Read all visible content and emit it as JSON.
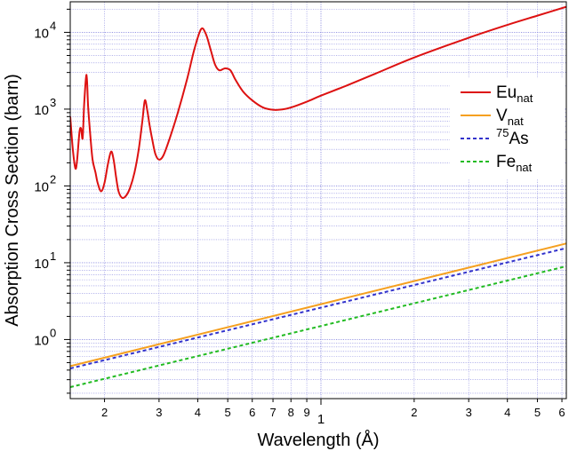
{
  "chart_data": {
    "type": "line",
    "title": "",
    "xlabel": "Wavelength (Å)",
    "ylabel": "Absorption Cross Section (barn)",
    "x_scale": "log",
    "y_scale": "log",
    "xlim": [
      0.155,
      6.2
    ],
    "ylim": [
      0.17,
      25000
    ],
    "grid": true,
    "legend_position": "right",
    "x_tick_labels": [
      {
        "value": 0.2,
        "label": "2"
      },
      {
        "value": 0.3,
        "label": "3"
      },
      {
        "value": 0.4,
        "label": "4"
      },
      {
        "value": 0.5,
        "label": "5"
      },
      {
        "value": 0.6,
        "label": "6"
      },
      {
        "value": 0.7,
        "label": "7"
      },
      {
        "value": 0.8,
        "label": "8"
      },
      {
        "value": 0.9,
        "label": "9"
      },
      {
        "value": 1,
        "label": "1"
      },
      {
        "value": 2,
        "label": "2"
      },
      {
        "value": 3,
        "label": "3"
      },
      {
        "value": 4,
        "label": "4"
      },
      {
        "value": 5,
        "label": "5"
      },
      {
        "value": 6,
        "label": "6"
      }
    ],
    "y_tick_labels": [
      {
        "value": 1,
        "base": "10",
        "exp": "0"
      },
      {
        "value": 10,
        "base": "10",
        "exp": "1"
      },
      {
        "value": 100,
        "base": "10",
        "exp": "2"
      },
      {
        "value": 1000,
        "base": "10",
        "exp": "3"
      },
      {
        "value": 10000,
        "base": "10",
        "exp": "4"
      }
    ],
    "series": [
      {
        "name": "Eu",
        "name_sub": "nat",
        "color": "#dd1111",
        "dash": "solid",
        "x": [
          0.155,
          0.158,
          0.161,
          0.163,
          0.166,
          0.168,
          0.17,
          0.172,
          0.175,
          0.177,
          0.18,
          0.183,
          0.187,
          0.19,
          0.195,
          0.2,
          0.205,
          0.21,
          0.214,
          0.218,
          0.222,
          0.228,
          0.235,
          0.242,
          0.25,
          0.258,
          0.265,
          0.27,
          0.275,
          0.28,
          0.286,
          0.292,
          0.3,
          0.31,
          0.325,
          0.345,
          0.37,
          0.39,
          0.41,
          0.425,
          0.44,
          0.455,
          0.47,
          0.49,
          0.51,
          0.53,
          0.56,
          0.6,
          0.65,
          0.7,
          0.75,
          0.8,
          0.9,
          1.0,
          1.2,
          1.5,
          2.0,
          3.0,
          4.0,
          5.0,
          6.2
        ],
        "y": [
          800,
          300,
          170,
          210,
          500,
          560,
          420,
          1200,
          2800,
          1100,
          450,
          220,
          150,
          110,
          85,
          110,
          190,
          280,
          220,
          130,
          85,
          70,
          75,
          95,
          150,
          300,
          700,
          1300,
          950,
          600,
          380,
          260,
          220,
          250,
          420,
          900,
          2500,
          6000,
          11000,
          9500,
          6000,
          3800,
          3200,
          3400,
          3200,
          2400,
          1700,
          1300,
          1050,
          980,
          990,
          1050,
          1250,
          1500,
          2000,
          2900,
          4700,
          8500,
          12500,
          16500,
          21500
        ]
      },
      {
        "name": "V",
        "name_sub": "nat",
        "color": "#f5a020",
        "dash": "solid",
        "x": [
          0.155,
          6.2
        ],
        "y": [
          0.45,
          17.8
        ]
      },
      {
        "name": "As",
        "name_sup": "75",
        "color": "#3333cc",
        "dash": "dashed",
        "x": [
          0.155,
          6.2
        ],
        "y": [
          0.42,
          15.5
        ]
      },
      {
        "name": "Fe",
        "name_sub": "nat",
        "color": "#22bb22",
        "dash": "dashed",
        "x": [
          0.155,
          6.2
        ],
        "y": [
          0.24,
          9.0
        ]
      }
    ]
  }
}
